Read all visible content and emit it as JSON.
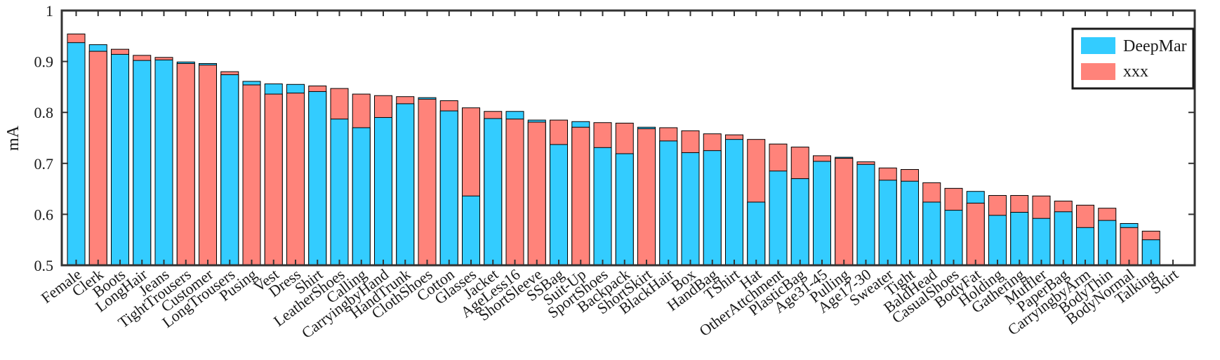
{
  "chart_data": {
    "type": "bar",
    "title": "",
    "xlabel": "",
    "ylabel": "mA",
    "ylim": [
      0.5,
      1
    ],
    "yticks": [
      "0.5",
      "0.6",
      "0.7",
      "0.8",
      "0.9",
      "1"
    ],
    "grid": false,
    "legend_position": "top-right",
    "colors": {
      "DeepMar": "#33CCFF",
      "xxx": "#FF837A"
    },
    "series": [
      {
        "name": "DeepMar"
      },
      {
        "name": "xxx"
      }
    ],
    "categories": [
      "Female",
      "Clerk",
      "Boots",
      "LongHair",
      "Jeans",
      "TightTrousers",
      "Customer",
      "LongTrousers",
      "Pusing",
      "Vest",
      "Dress",
      "Shirt",
      "LeatherShoes",
      "Calling",
      "CarryingbyHand",
      "HandTrunk",
      "ClothShoes",
      "Cotton",
      "Glasses",
      "Jacket",
      "AgeLess16",
      "ShortSleeve",
      "SSBag",
      "Suit-Up",
      "SportShoes",
      "Backpack",
      "ShortSkirt",
      "BlackHair",
      "Box",
      "HandBag",
      "TShirt",
      "Hat",
      "OtherAttchment",
      "PlasticBag",
      "Age31-45",
      "Pulling",
      "Age17-30",
      "Sweater",
      "Tight",
      "BaldHead",
      "CasualShoes",
      "BodyFat",
      "Holding",
      "Gathering",
      "Muffler",
      "PaperBag",
      "CarryingbyArm",
      "BodyThin",
      "BodyNormal",
      "Talking",
      "Skirt"
    ],
    "deepmar": [
      0.937,
      0.933,
      0.914,
      0.902,
      0.903,
      0.899,
      0.896,
      0.874,
      0.861,
      0.856,
      0.855,
      0.841,
      0.787,
      0.77,
      0.79,
      0.817,
      0.829,
      0.803,
      0.636,
      0.788,
      0.802,
      0.785,
      0.737,
      0.782,
      0.731,
      0.719,
      0.771,
      0.744,
      0.721,
      0.725,
      0.747,
      0.624,
      0.685,
      0.67,
      0.704,
      0.712,
      0.698,
      0.667,
      0.665,
      0.624,
      0.608,
      0.645,
      0.598,
      0.604,
      0.592,
      0.605,
      0.574,
      0.588,
      0.582,
      0.55,
      0.5
    ],
    "xxx": [
      0.954,
      0.92,
      0.924,
      0.912,
      0.908,
      0.896,
      0.893,
      0.88,
      0.854,
      0.836,
      0.838,
      0.852,
      0.847,
      0.836,
      0.833,
      0.831,
      0.826,
      0.823,
      0.809,
      0.802,
      0.787,
      0.781,
      0.785,
      0.771,
      0.78,
      0.779,
      0.768,
      0.77,
      0.764,
      0.758,
      0.756,
      0.747,
      0.738,
      0.732,
      0.715,
      0.71,
      0.703,
      0.691,
      0.688,
      0.662,
      0.651,
      0.622,
      0.637,
      0.637,
      0.636,
      0.626,
      0.618,
      0.612,
      0.574,
      0.567,
      0.5
    ]
  }
}
